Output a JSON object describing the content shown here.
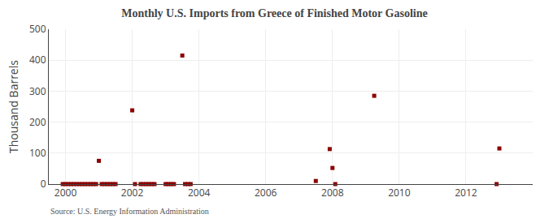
{
  "chart_data": {
    "type": "scatter",
    "title": "Monthly U.S. Imports from Greece of Finished Motor Gasoline",
    "ylabel": "Thousand Barrels",
    "annotations": [
      "Source: U.S. Energy Information Administration"
    ],
    "x": [
      1999.917,
      2000.0,
      2000.083,
      2000.167,
      2000.25,
      2000.333,
      2000.417,
      2000.5,
      2000.583,
      2000.667,
      2000.75,
      2000.833,
      2000.917,
      2001.0,
      2001.083,
      2001.167,
      2001.25,
      2001.333,
      2001.417,
      2001.5,
      2002.0,
      2002.083,
      2002.25,
      2002.333,
      2002.417,
      2002.5,
      2002.583,
      2002.667,
      2003.0,
      2003.083,
      2003.167,
      2003.25,
      2003.5,
      2003.583,
      2003.667,
      2003.75,
      2007.5,
      2007.917,
      2008.0,
      2008.083,
      2009.25,
      2012.917,
      2013.0
    ],
    "values": [
      0,
      0,
      0,
      0,
      0,
      0,
      0,
      0,
      0,
      0,
      0,
      0,
      0,
      75,
      0,
      0,
      0,
      0,
      0,
      0,
      238,
      0,
      0,
      0,
      0,
      0,
      0,
      0,
      0,
      0,
      0,
      0,
      415,
      0,
      0,
      0,
      10,
      113,
      52,
      0,
      285,
      0,
      115
    ],
    "color": "#8b0000",
    "marker": "square",
    "xlim": [
      1999.5,
      2014.0
    ],
    "ylim": [
      0,
      500
    ],
    "xticks": [
      2000,
      2002,
      2004,
      2006,
      2008,
      2010,
      2012
    ],
    "yticks": [
      0,
      100,
      200,
      300,
      400,
      500
    ],
    "grid": true
  }
}
